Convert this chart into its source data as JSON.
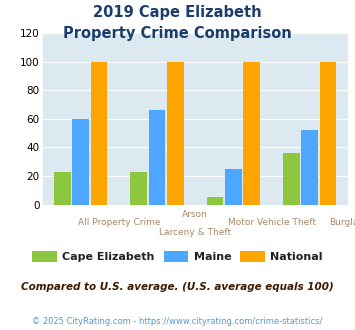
{
  "title_line1": "2019 Cape Elizabeth",
  "title_line2": "Property Crime Comparison",
  "cat_labels_line1": [
    "All Property Crime",
    "Arson",
    "Motor Vehicle Theft",
    "Burglary"
  ],
  "cat_labels_line2": [
    "",
    "Larceny & Theft",
    "",
    ""
  ],
  "cape_elizabeth": [
    23,
    23,
    5,
    36
  ],
  "maine": [
    60,
    66,
    25,
    52
  ],
  "national": [
    100,
    100,
    100,
    100
  ],
  "color_cape": "#8DC63F",
  "color_maine": "#4DA6FF",
  "color_national": "#FFA500",
  "legend_labels": [
    "Cape Elizabeth",
    "Maine",
    "National"
  ],
  "note_text": "Compared to U.S. average. (U.S. average equals 100)",
  "footer": "© 2025 CityRating.com - https://www.cityrating.com/crime-statistics/",
  "ylim": [
    0,
    120
  ],
  "yticks": [
    0,
    20,
    40,
    60,
    80,
    100,
    120
  ],
  "background_color": "#dce9f0",
  "title_color": "#1a3d6b",
  "note_color": "#3d1a00",
  "footer_color": "#5599cc",
  "xlabel_color": "#aa8866",
  "legend_text_color": "#222222",
  "bar_width": 0.22,
  "bar_gap": 0.02
}
